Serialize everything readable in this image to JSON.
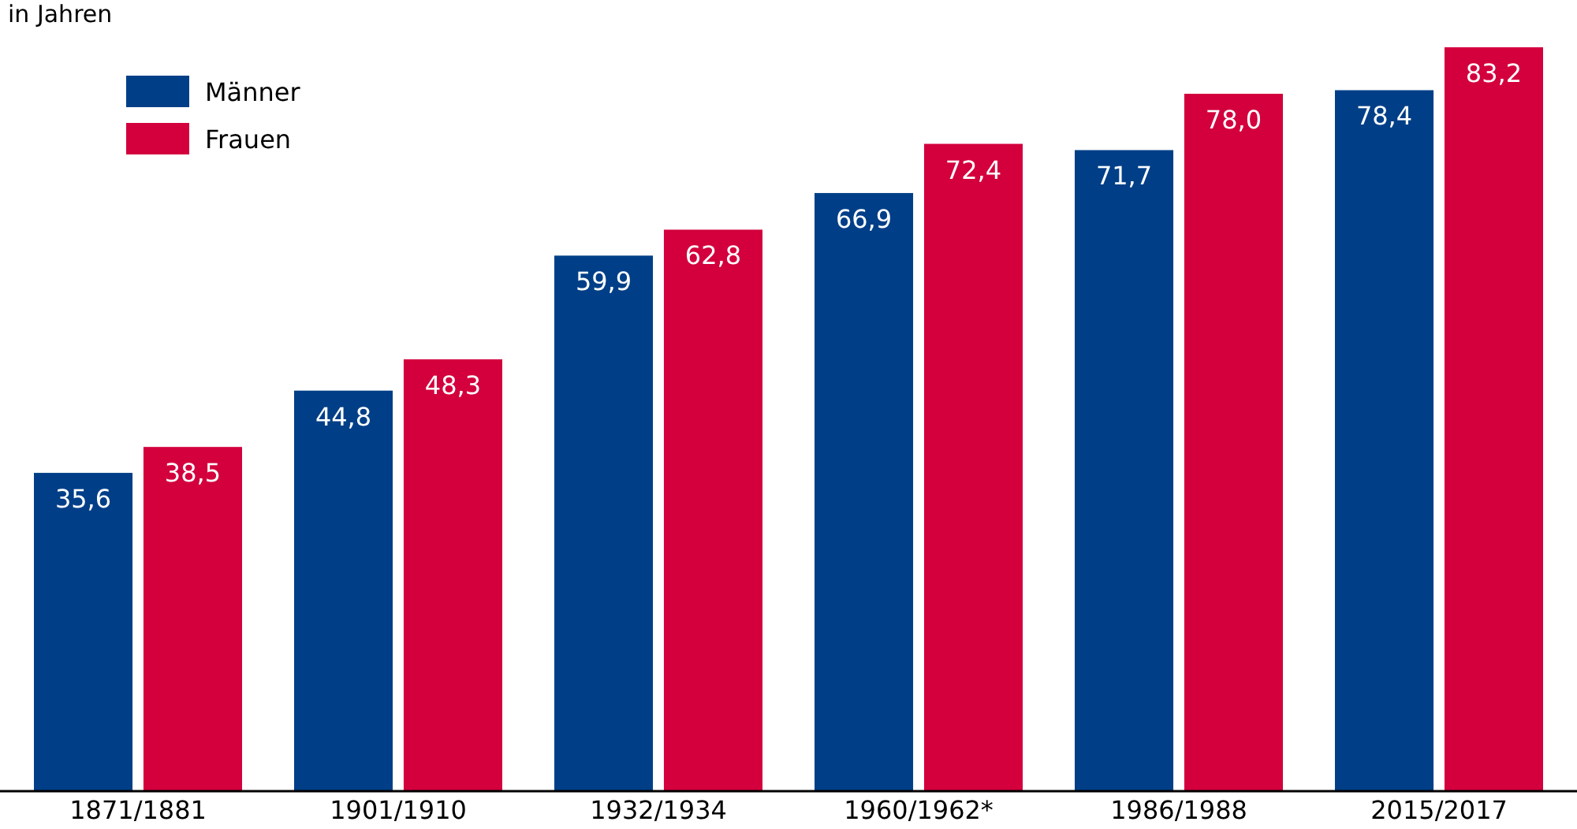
{
  "chart_data": {
    "type": "bar",
    "ylabel": "in Jahren",
    "categories": [
      "1871/1881",
      "1901/1910",
      "1932/1934",
      "1960/1962*",
      "1986/1988",
      "2015/2017"
    ],
    "series": [
      {
        "name": "Männer",
        "color": "#003f87",
        "values": [
          35.6,
          44.8,
          59.9,
          66.9,
          71.7,
          78.4
        ],
        "value_labels": [
          "35,6",
          "44,8",
          "59,9",
          "66,9",
          "71,7",
          "78,4"
        ]
      },
      {
        "name": "Frauen",
        "color": "#d3003d",
        "values": [
          38.5,
          48.3,
          62.8,
          72.4,
          78.0,
          83.2
        ],
        "value_labels": [
          "38,5",
          "48,3",
          "62,8",
          "72,4",
          "78,0",
          "83,2"
        ]
      }
    ],
    "legend": "top left"
  }
}
